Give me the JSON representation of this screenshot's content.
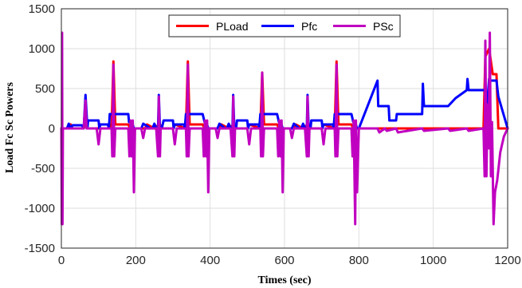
{
  "chart_data": {
    "type": "line",
    "title": "",
    "xlabel": "Times (sec)",
    "ylabel": "Load Fc Sc Powers",
    "xlim": [
      0,
      1200
    ],
    "ylim": [
      -1500,
      1500
    ],
    "xticks": [
      0,
      200,
      400,
      600,
      800,
      1000,
      1200
    ],
    "yticks": [
      -1500,
      -1000,
      -500,
      0,
      500,
      1000,
      1500
    ],
    "grid": true,
    "legend_position": "top",
    "series": [
      {
        "name": "PLoad",
        "color": "#ff0000",
        "x": [
          0,
          20,
          25,
          30,
          60,
          65,
          70,
          100,
          105,
          130,
          135,
          140,
          145,
          150,
          180,
          185,
          190,
          195,
          225,
          230,
          250,
          255,
          260,
          265,
          270,
          300,
          305,
          335,
          340,
          345,
          350,
          380,
          385,
          390,
          395,
          425,
          430,
          450,
          455,
          460,
          465,
          470,
          500,
          505,
          535,
          540,
          545,
          550,
          580,
          585,
          590,
          595,
          625,
          630,
          650,
          655,
          660,
          665,
          670,
          700,
          705,
          735,
          740,
          745,
          750,
          780,
          785,
          790,
          795,
          800,
          860,
          880,
          900,
          940,
          970,
          975,
          980,
          1040,
          1090,
          1135,
          1140,
          1150,
          1160,
          1165,
          1170,
          1175,
          1200
        ],
        "y": [
          0,
          0,
          50,
          0,
          0,
          50,
          0,
          0,
          50,
          50,
          0,
          840,
          50,
          50,
          50,
          0,
          50,
          0,
          0,
          50,
          0,
          30,
          0,
          50,
          0,
          0,
          50,
          0,
          840,
          50,
          50,
          50,
          0,
          50,
          0,
          0,
          50,
          0,
          30,
          0,
          50,
          0,
          0,
          50,
          0,
          700,
          50,
          50,
          50,
          0,
          50,
          0,
          0,
          50,
          0,
          30,
          0,
          50,
          0,
          0,
          50,
          0,
          840,
          50,
          50,
          50,
          0,
          50,
          0,
          0,
          0,
          0,
          0,
          0,
          0,
          0,
          0,
          0,
          0,
          0,
          900,
          1000,
          680,
          680,
          680,
          0,
          0
        ]
      },
      {
        "name": "Pfc",
        "color": "#0000ff",
        "x": [
          0,
          15,
          20,
          25,
          30,
          55,
          60,
          65,
          70,
          72,
          75,
          100,
          102,
          105,
          125,
          128,
          130,
          135,
          140,
          145,
          160,
          180,
          182,
          190,
          195,
          215,
          220,
          240,
          245,
          250,
          255,
          260,
          262,
          265,
          270,
          275,
          300,
          302,
          305,
          330,
          332,
          335,
          340,
          345,
          380,
          385,
          390,
          395,
          420,
          425,
          440,
          445,
          450,
          455,
          460,
          462,
          465,
          470,
          472,
          475,
          500,
          502,
          505,
          530,
          532,
          535,
          540,
          545,
          580,
          585,
          590,
          595,
          620,
          625,
          640,
          645,
          650,
          655,
          660,
          662,
          665,
          670,
          672,
          675,
          700,
          702,
          705,
          730,
          732,
          735,
          740,
          745,
          780,
          785,
          790,
          795,
          800,
          850,
          852,
          855,
          860,
          880,
          882,
          885,
          900,
          902,
          905,
          970,
          972,
          975,
          980,
          1040,
          1060,
          1090,
          1092,
          1095,
          1135,
          1140,
          1145,
          1150,
          1155,
          1160,
          1170,
          1175,
          1200
        ],
        "y": [
          0,
          0,
          60,
          0,
          40,
          40,
          0,
          420,
          0,
          100,
          100,
          100,
          0,
          50,
          50,
          0,
          180,
          180,
          180,
          180,
          180,
          180,
          80,
          80,
          0,
          0,
          60,
          0,
          0,
          60,
          0,
          0,
          420,
          0,
          0,
          100,
          100,
          0,
          50,
          50,
          0,
          180,
          180,
          180,
          180,
          80,
          80,
          0,
          0,
          60,
          0,
          0,
          60,
          0,
          0,
          420,
          0,
          0,
          100,
          100,
          100,
          0,
          50,
          50,
          0,
          180,
          180,
          180,
          180,
          80,
          80,
          0,
          0,
          60,
          0,
          0,
          60,
          0,
          0,
          420,
          0,
          0,
          100,
          100,
          100,
          0,
          50,
          50,
          0,
          180,
          180,
          180,
          180,
          80,
          80,
          0,
          0,
          600,
          280,
          280,
          280,
          280,
          100,
          100,
          100,
          180,
          180,
          180,
          560,
          280,
          280,
          280,
          380,
          480,
          620,
          480,
          480,
          480,
          300,
          620,
          600,
          600,
          600,
          400,
          0
        ]
      },
      {
        "name": "PSc",
        "color": "#c000c0",
        "x": [
          0,
          1,
          2,
          3,
          4,
          20,
          60,
          65,
          68,
          70,
          95,
          100,
          105,
          110,
          135,
          137,
          140,
          142,
          145,
          150,
          160,
          180,
          183,
          186,
          189,
          192,
          195,
          198,
          215,
          220,
          225,
          255,
          260,
          262,
          265,
          267,
          270,
          300,
          305,
          310,
          335,
          337,
          340,
          342,
          345,
          350,
          360,
          380,
          383,
          386,
          389,
          392,
          395,
          398,
          415,
          420,
          425,
          455,
          460,
          462,
          465,
          467,
          470,
          500,
          505,
          510,
          535,
          537,
          540,
          542,
          545,
          550,
          560,
          580,
          583,
          586,
          589,
          592,
          595,
          598,
          615,
          620,
          625,
          655,
          660,
          662,
          665,
          667,
          670,
          700,
          705,
          710,
          735,
          737,
          740,
          742,
          745,
          750,
          760,
          780,
          783,
          786,
          790,
          792,
          795,
          800,
          850,
          855,
          870,
          875,
          900,
          905,
          970,
          975,
          1040,
          1045,
          1090,
          1095,
          1135,
          1138,
          1140,
          1143,
          1146,
          1149,
          1152,
          1155,
          1158,
          1162,
          1166,
          1172,
          1180,
          1190,
          1200
        ],
        "y": [
          0,
          -1200,
          1200,
          -1200,
          0,
          0,
          0,
          350,
          0,
          0,
          0,
          -200,
          0,
          0,
          0,
          -350,
          800,
          -350,
          0,
          0,
          0,
          0,
          -350,
          100,
          -350,
          100,
          -800,
          0,
          0,
          -120,
          0,
          0,
          -350,
          400,
          -350,
          0,
          0,
          0,
          -200,
          0,
          0,
          -350,
          800,
          -350,
          0,
          0,
          0,
          0,
          -350,
          100,
          -350,
          100,
          -800,
          0,
          0,
          -120,
          0,
          0,
          -350,
          400,
          -350,
          0,
          0,
          0,
          -200,
          0,
          0,
          -350,
          700,
          -350,
          0,
          0,
          0,
          0,
          -350,
          100,
          -350,
          100,
          -800,
          0,
          0,
          -120,
          0,
          0,
          -350,
          400,
          -350,
          0,
          0,
          0,
          -200,
          0,
          0,
          -350,
          800,
          -350,
          0,
          0,
          0,
          0,
          -350,
          100,
          -1200,
          100,
          -800,
          0,
          0,
          -50,
          0,
          -30,
          0,
          -50,
          0,
          -30,
          0,
          -30,
          0,
          -30,
          0,
          -600,
          1100,
          -600,
          300,
          -250,
          1200,
          -600,
          80,
          -1200,
          -800,
          -650,
          -300,
          -100,
          0
        ]
      }
    ]
  }
}
